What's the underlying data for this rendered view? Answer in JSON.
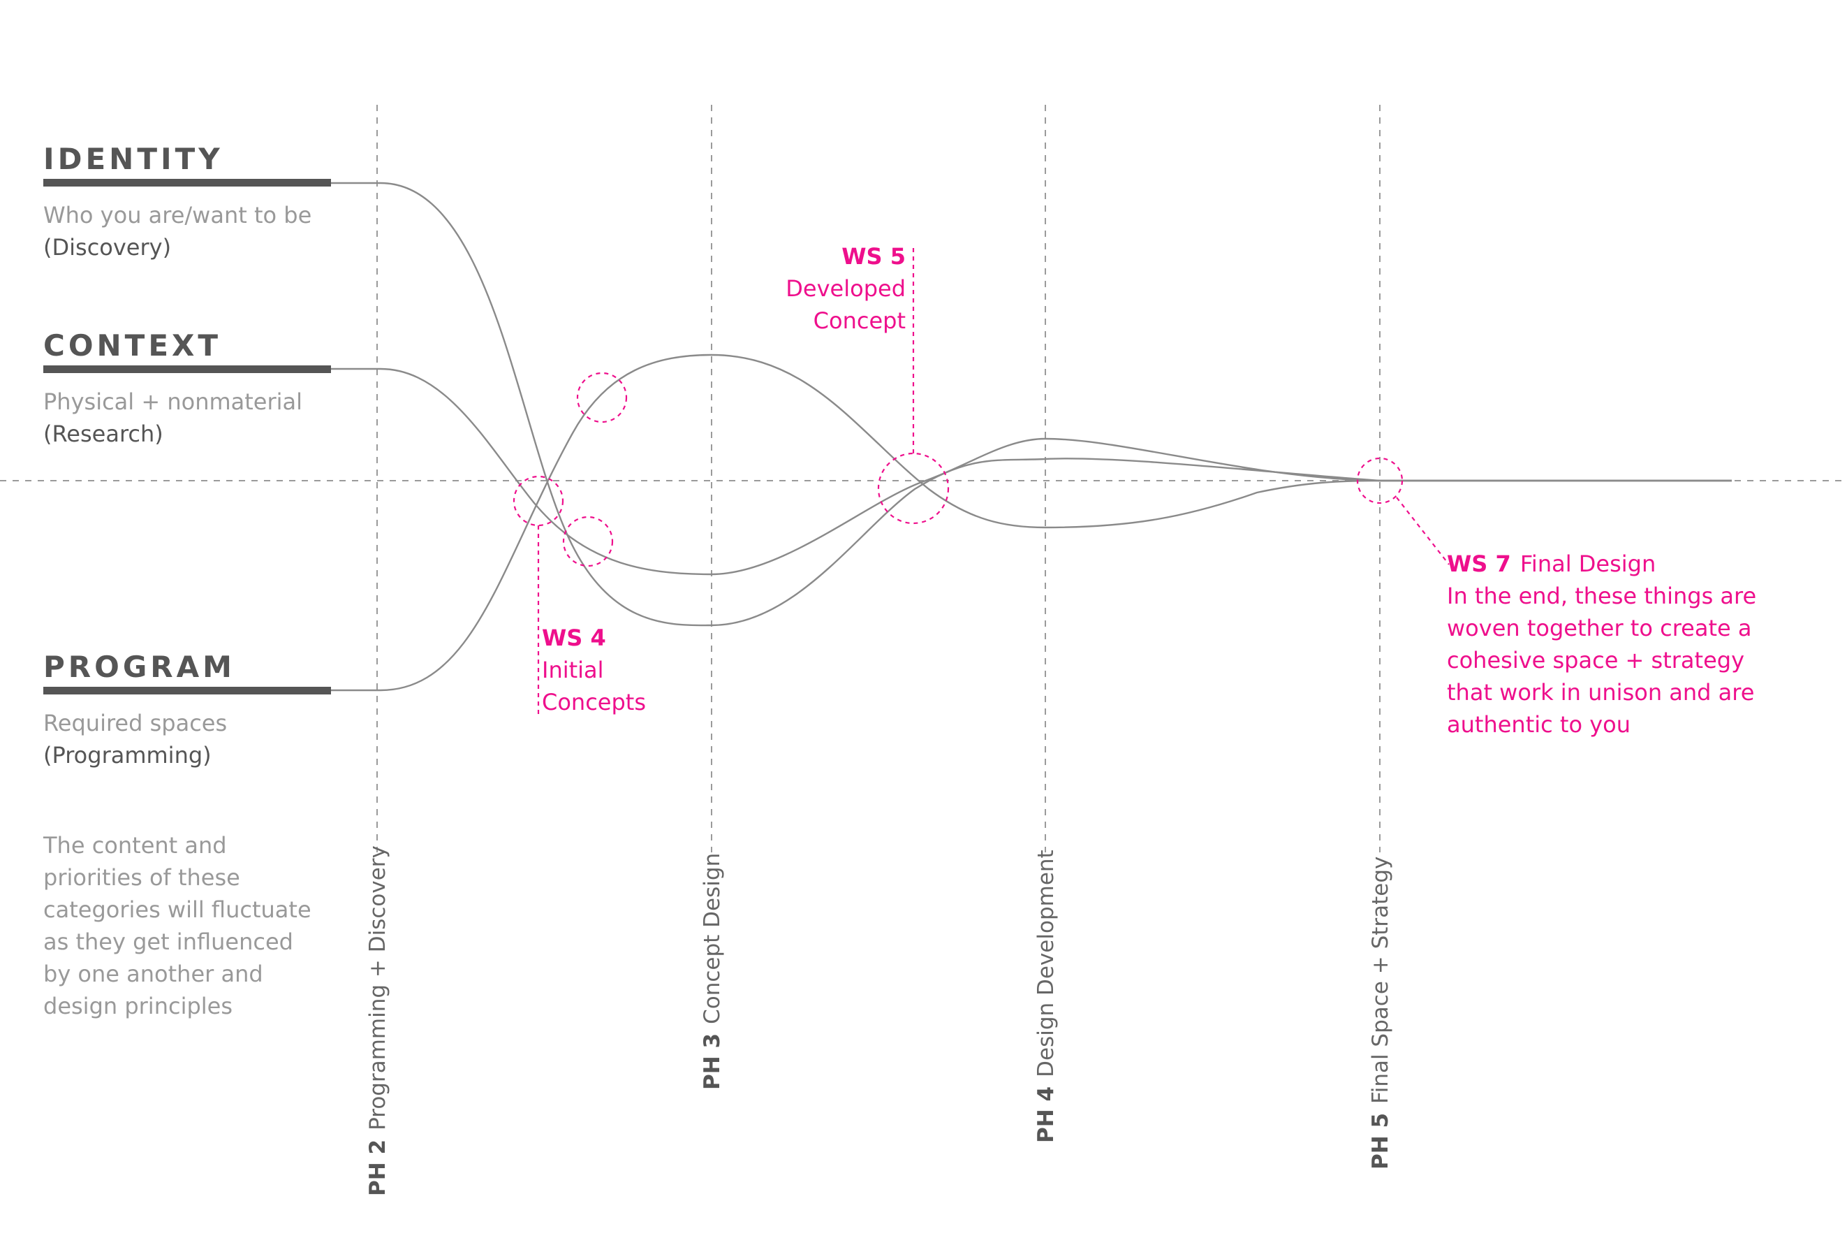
{
  "categories": [
    {
      "title": "IDENTITY",
      "subtitle": "Who you are/want to be",
      "phase": "(Discovery)"
    },
    {
      "title": "CONTEXT",
      "subtitle": "Physical + nonmaterial",
      "phase": "(Research)"
    },
    {
      "title": "PROGRAM",
      "subtitle": "Required spaces",
      "phase": "(Programming)"
    }
  ],
  "note": [
    "The content and",
    "priorities of these",
    "categories will fluctuate",
    "as they get influenced",
    "by one another and",
    "design principles"
  ],
  "phases": [
    {
      "code": "PH 2",
      "label": "Programming + Discovery"
    },
    {
      "code": "PH 3",
      "label": "Concept Design"
    },
    {
      "code": "PH 4",
      "label": "Design Development"
    },
    {
      "code": "PH 5",
      "label": "Final Space + Strategy"
    }
  ],
  "workshops": {
    "ws4": {
      "code": "WS 4",
      "lines": [
        "Initial",
        "Concepts"
      ]
    },
    "ws5": {
      "code": "WS 5",
      "lines": [
        "Developed",
        "Concept"
      ]
    },
    "ws7": {
      "code": "WS 7",
      "title": "Final Design",
      "lines": [
        "In the end, these things are",
        "woven together to create a",
        "cohesive space + strategy",
        "that work in unison and are",
        "authentic to you"
      ]
    }
  },
  "colors": {
    "accent": "#ee0f8c",
    "text_dark": "#555555",
    "text_light": "#999999",
    "lines": "#8a8a8a"
  }
}
